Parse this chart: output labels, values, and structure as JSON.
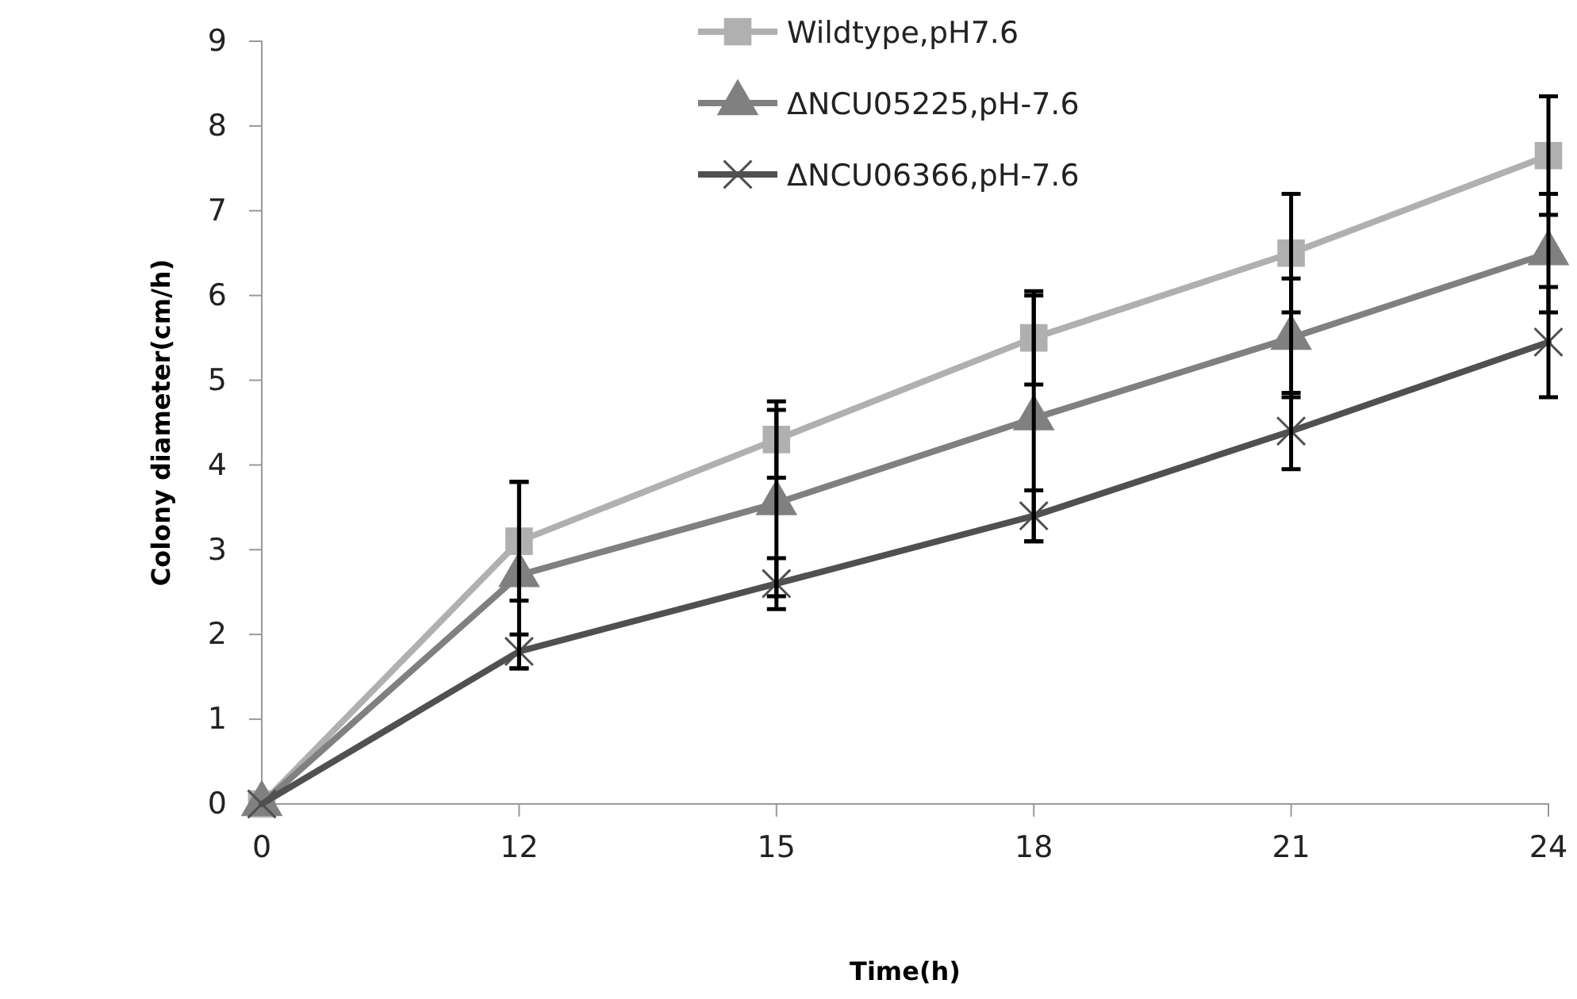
{
  "chart_data": {
    "type": "line",
    "xlabel": "Time(h)",
    "ylabel": "Colony diameter(cm/h)",
    "categories": [
      "0",
      "12",
      "15",
      "18",
      "21",
      "24"
    ],
    "series": [
      {
        "name": "Wildtype,pH7.6",
        "color": "#b0b0b0",
        "marker": "square",
        "values": [
          0,
          3.1,
          4.3,
          5.5,
          6.5,
          7.65
        ],
        "errors": [
          null,
          0.7,
          0.45,
          0.55,
          0.7,
          0.7
        ]
      },
      {
        "name": "ΔNCU05225,pH-7.6",
        "color": "#808080",
        "marker": "triangle",
        "values": [
          0,
          2.7,
          3.55,
          4.55,
          5.5,
          6.5
        ],
        "errors": [
          null,
          1.1,
          1.1,
          1.45,
          0.7,
          0.7
        ]
      },
      {
        "name": "ΔNCU06366,pH-7.6",
        "color": "#505050",
        "marker": "cross",
        "values": [
          0,
          1.8,
          2.6,
          3.4,
          4.4,
          5.45
        ],
        "errors": [
          null,
          0.2,
          0.3,
          0.3,
          0.45,
          0.65
        ]
      }
    ],
    "ylim": [
      0,
      9
    ],
    "yticks": [
      0,
      1,
      2,
      3,
      4,
      5,
      6,
      7,
      8,
      9
    ],
    "grid": false,
    "legend": "top"
  }
}
